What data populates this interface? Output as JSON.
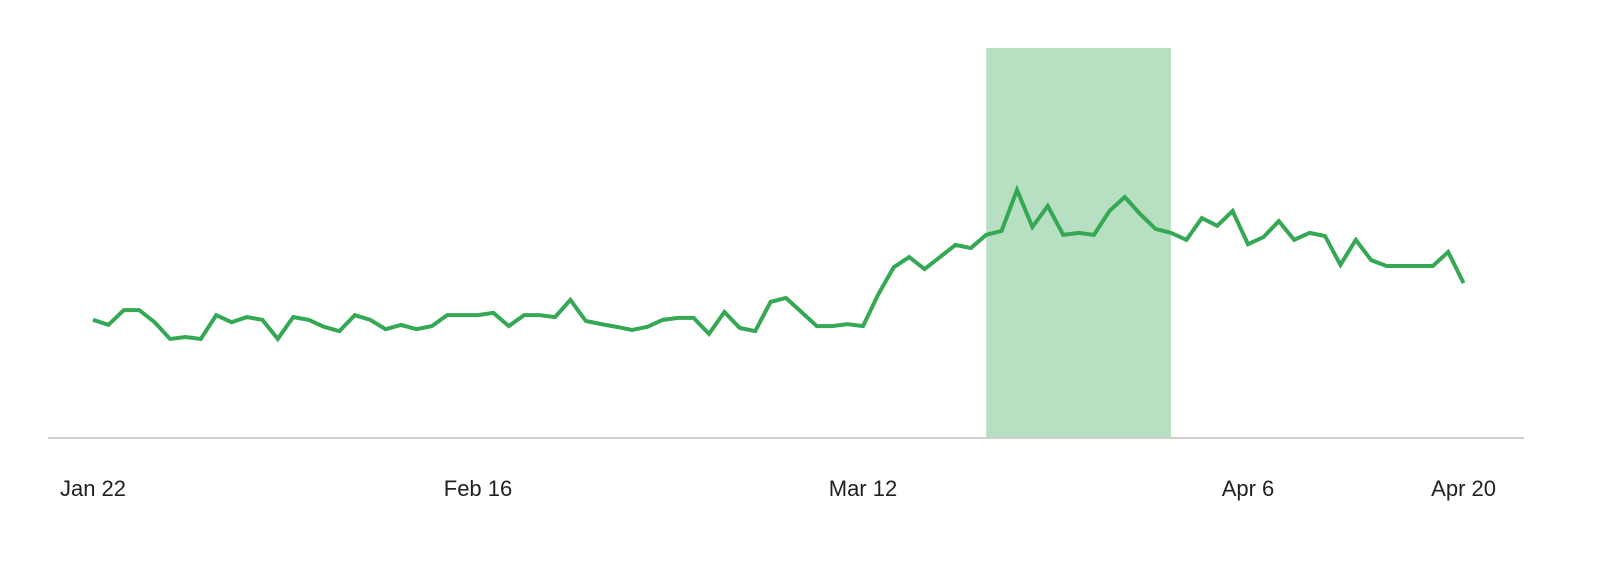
{
  "chart_data": {
    "type": "line",
    "categories": [
      "Jan 22",
      null,
      null,
      null,
      null,
      null,
      null,
      null,
      null,
      null,
      null,
      null,
      null,
      null,
      null,
      null,
      null,
      null,
      null,
      null,
      null,
      null,
      null,
      null,
      null,
      "Feb 16",
      null,
      null,
      null,
      null,
      null,
      null,
      null,
      null,
      null,
      null,
      null,
      null,
      null,
      null,
      null,
      null,
      null,
      null,
      null,
      null,
      null,
      null,
      null,
      null,
      "Mar 12",
      null,
      null,
      null,
      null,
      null,
      null,
      null,
      null,
      null,
      null,
      null,
      null,
      null,
      null,
      null,
      null,
      null,
      null,
      null,
      null,
      null,
      null,
      null,
      null,
      "Apr 6",
      null,
      null,
      null,
      null,
      null,
      null,
      null,
      null,
      null,
      null,
      null,
      null,
      null,
      "Apr 20"
    ],
    "series": [
      {
        "color": "#34a853",
        "values": [
          30.3,
          29.0,
          32.8,
          32.8,
          29.7,
          25.4,
          25.9,
          25.4,
          31.5,
          29.7,
          31.0,
          30.3,
          25.4,
          31.0,
          30.3,
          28.5,
          27.4,
          31.5,
          30.3,
          27.9,
          29.0,
          27.9,
          28.7,
          31.5,
          31.5,
          31.5,
          32.1,
          28.7,
          31.5,
          31.5,
          31.0,
          35.4,
          30.0,
          29.2,
          28.5,
          27.7,
          28.5,
          30.3,
          30.8,
          30.8,
          26.7,
          32.3,
          28.2,
          27.4,
          34.9,
          35.9,
          32.3,
          28.7,
          28.7,
          29.2,
          28.7,
          36.9,
          43.8,
          46.4,
          43.3,
          46.4,
          49.5,
          48.7,
          52.1,
          53.1,
          63.6,
          54.1,
          59.5,
          52.1,
          52.6,
          52.1,
          58.2,
          61.8,
          57.4,
          53.6,
          52.6,
          50.8,
          56.4,
          54.4,
          58.2,
          49.7,
          51.5,
          55.6,
          50.8,
          52.6,
          51.8,
          44.4,
          50.8,
          45.6,
          44.1,
          44.1,
          44.1,
          44.1,
          47.7,
          39.7
        ]
      }
    ],
    "highlight": {
      "from": 58,
      "to": 70,
      "color": "#b7dfc1"
    },
    "ylim": [
      0,
      100
    ]
  }
}
